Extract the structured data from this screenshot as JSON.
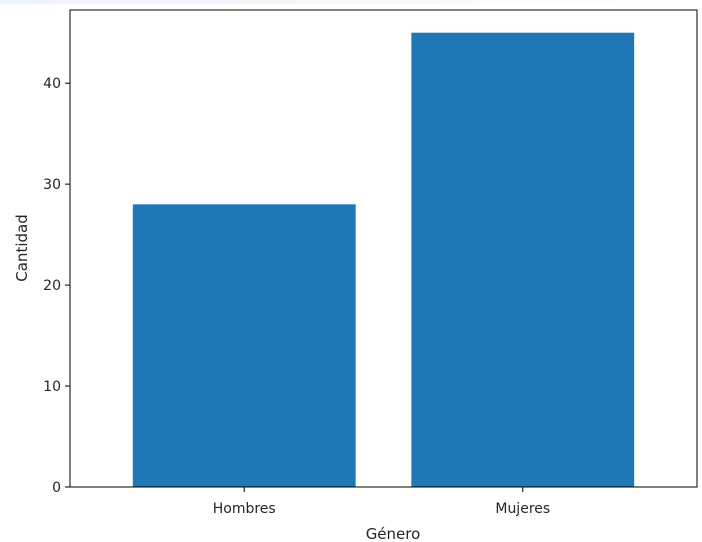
{
  "chart_data": {
    "type": "bar",
    "categories": [
      "Hombres",
      "Mujeres"
    ],
    "values": [
      28,
      45
    ],
    "title": "",
    "xlabel": "Género",
    "ylabel": "Cantidad",
    "ylim": [
      0,
      47.25
    ],
    "yticks": [
      0,
      10,
      20,
      30,
      40
    ],
    "bar_color": "#1f77b4",
    "grid": false,
    "legend": "none"
  }
}
